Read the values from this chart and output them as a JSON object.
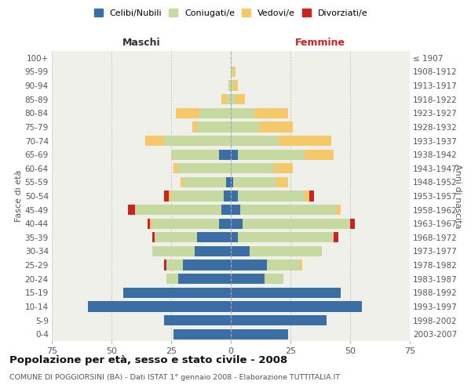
{
  "age_groups": [
    "0-4",
    "5-9",
    "10-14",
    "15-19",
    "20-24",
    "25-29",
    "30-34",
    "35-39",
    "40-44",
    "45-49",
    "50-54",
    "55-59",
    "60-64",
    "65-69",
    "70-74",
    "75-79",
    "80-84",
    "85-89",
    "90-94",
    "95-99",
    "100+"
  ],
  "birth_years": [
    "2003-2007",
    "1998-2002",
    "1993-1997",
    "1988-1992",
    "1983-1987",
    "1978-1982",
    "1973-1977",
    "1968-1972",
    "1963-1967",
    "1958-1962",
    "1953-1957",
    "1948-1952",
    "1943-1947",
    "1938-1942",
    "1933-1937",
    "1928-1932",
    "1923-1927",
    "1918-1922",
    "1913-1917",
    "1908-1912",
    "≤ 1907"
  ],
  "males": {
    "celibi": [
      24,
      28,
      60,
      45,
      22,
      20,
      15,
      14,
      5,
      4,
      3,
      2,
      0,
      5,
      0,
      0,
      0,
      0,
      0,
      0,
      0
    ],
    "coniugati": [
      0,
      0,
      0,
      0,
      5,
      7,
      18,
      18,
      28,
      36,
      22,
      18,
      22,
      20,
      28,
      14,
      13,
      2,
      1,
      0,
      0
    ],
    "vedovi": [
      0,
      0,
      0,
      0,
      0,
      0,
      0,
      0,
      1,
      0,
      1,
      1,
      2,
      0,
      8,
      2,
      10,
      2,
      0,
      0,
      0
    ],
    "divorziati": [
      0,
      0,
      0,
      0,
      0,
      1,
      0,
      1,
      1,
      3,
      2,
      0,
      0,
      0,
      0,
      0,
      0,
      0,
      0,
      0,
      0
    ]
  },
  "females": {
    "nubili": [
      24,
      40,
      55,
      46,
      14,
      15,
      8,
      3,
      5,
      4,
      3,
      1,
      0,
      3,
      0,
      0,
      0,
      0,
      0,
      0,
      0
    ],
    "coniugate": [
      0,
      0,
      0,
      0,
      8,
      14,
      30,
      40,
      45,
      40,
      28,
      18,
      18,
      28,
      20,
      12,
      10,
      2,
      1,
      1,
      0
    ],
    "vedove": [
      0,
      0,
      0,
      0,
      0,
      1,
      0,
      0,
      0,
      2,
      2,
      5,
      8,
      12,
      22,
      14,
      14,
      4,
      2,
      1,
      0
    ],
    "divorziate": [
      0,
      0,
      0,
      0,
      0,
      0,
      0,
      2,
      2,
      0,
      2,
      0,
      0,
      0,
      0,
      0,
      0,
      0,
      0,
      0,
      0
    ]
  },
  "colors": {
    "celibi": "#3a6ea5",
    "coniugati": "#c5d9a0",
    "vedovi": "#f5c96a",
    "divorziati": "#cc2222"
  },
  "xlim": 75,
  "title": "Popolazione per età, sesso e stato civile - 2008",
  "subtitle": "COMUNE DI POGGIORSINI (BA) - Dati ISTAT 1° gennaio 2008 - Elaborazione TUTTITALIA.IT",
  "ylabel_left": "Fasce di età",
  "ylabel_right": "Anni di nascita",
  "xlabel_males": "Maschi",
  "xlabel_females": "Femmine",
  "bg_color": "#f0f0eb",
  "legend_labels": [
    "Celibi/Nubili",
    "Coniugati/e",
    "Vedovi/e",
    "Divorziati/e"
  ]
}
